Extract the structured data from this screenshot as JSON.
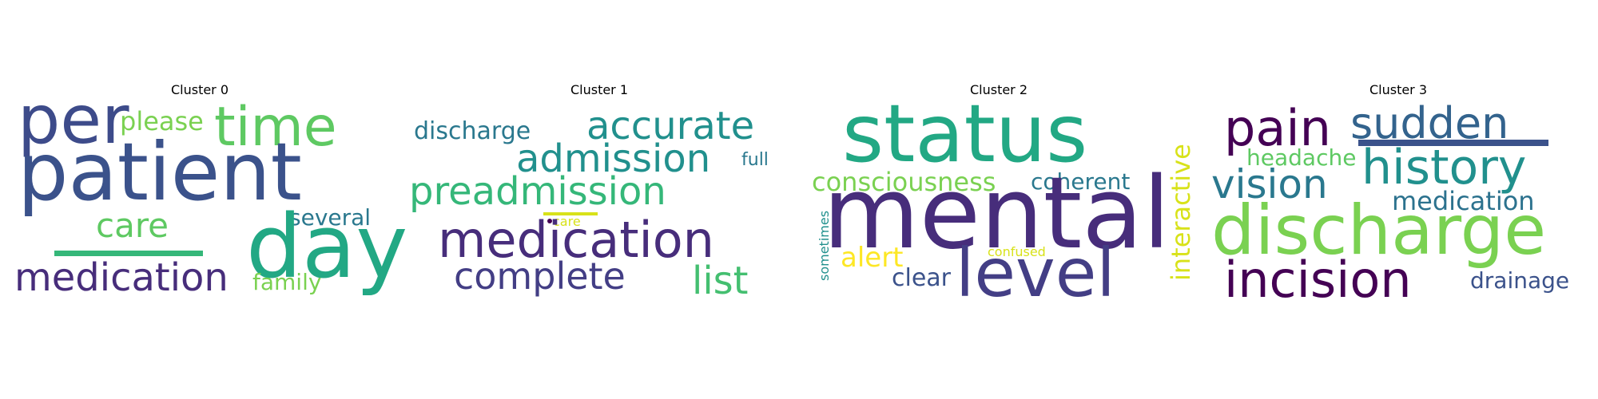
{
  "colors": {
    "dark_purple": "#440154",
    "indigo": "#3d4b8a",
    "purple": "#482878",
    "blue": "#33638d",
    "teal": "#2a788e",
    "teal_green": "#21908d",
    "green": "#22a884",
    "light_green": "#44bf70",
    "lime": "#7ad151",
    "yellow": "#d8e219",
    "bright_yellow": "#fde725"
  },
  "panels": [
    {
      "title": "Cluster 0",
      "words": [
        {
          "text": "per",
          "color": "#3d4b8a"
        },
        {
          "text": "please",
          "color": "#7ad151"
        },
        {
          "text": "time",
          "color": "#5ec962"
        },
        {
          "text": "patient",
          "color": "#3b528b"
        },
        {
          "text": "care",
          "color": "#5ec962"
        },
        {
          "text": "several",
          "color": "#2a788e"
        },
        {
          "text": "day",
          "color": "#22a884"
        },
        {
          "text": "medication",
          "color": "#472d7b"
        },
        {
          "text": "family",
          "color": "#7ad151"
        }
      ]
    },
    {
      "title": "Cluster 1",
      "words": [
        {
          "text": "discharge",
          "color": "#2a788e"
        },
        {
          "text": "accurate",
          "color": "#21908d"
        },
        {
          "text": "admission",
          "color": "#21908d"
        },
        {
          "text": "full",
          "color": "#2a788e"
        },
        {
          "text": "preadmission",
          "color": "#35b779"
        },
        {
          "text": "care",
          "color": "#d8e219"
        },
        {
          "text": "medication",
          "color": "#472d7b"
        },
        {
          "text": "complete",
          "color": "#433e85"
        },
        {
          "text": "list",
          "color": "#44bf70"
        }
      ]
    },
    {
      "title": "Cluster 2",
      "words": [
        {
          "text": "status",
          "color": "#22a884"
        },
        {
          "text": "interactive",
          "color": "#d8e219"
        },
        {
          "text": "consciousness",
          "color": "#7ad151"
        },
        {
          "text": "coherent",
          "color": "#2a788e"
        },
        {
          "text": "mental",
          "color": "#472d7b"
        },
        {
          "text": "sometimes",
          "color": "#21908d"
        },
        {
          "text": "alert",
          "color": "#fde725"
        },
        {
          "text": "confused",
          "color": "#d8e219"
        },
        {
          "text": "clear",
          "color": "#3b528b"
        },
        {
          "text": "level",
          "color": "#433e85"
        }
      ]
    },
    {
      "title": "Cluster 3",
      "words": [
        {
          "text": "pain",
          "color": "#440154"
        },
        {
          "text": "sudden",
          "color": "#33638d"
        },
        {
          "text": "headache",
          "color": "#5ec962"
        },
        {
          "text": "history",
          "color": "#21908d"
        },
        {
          "text": "vision",
          "color": "#2a788e"
        },
        {
          "text": "medication",
          "color": "#2c728e"
        },
        {
          "text": "discharge",
          "color": "#7ad151"
        },
        {
          "text": "incision",
          "color": "#440154"
        },
        {
          "text": "drainage",
          "color": "#3b528b"
        }
      ]
    }
  ]
}
